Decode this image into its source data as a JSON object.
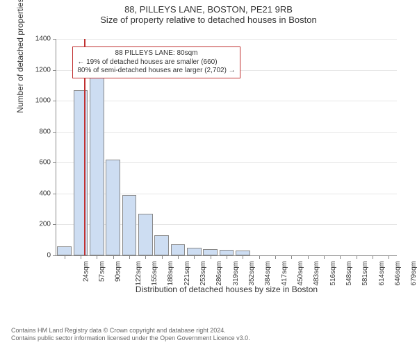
{
  "title_main": "88, PILLEYS LANE, BOSTON, PE21 9RB",
  "title_sub": "Size of property relative to detached houses in Boston",
  "chart": {
    "type": "histogram",
    "y_axis_label": "Number of detached properties",
    "x_axis_label": "Distribution of detached houses by size in Boston",
    "ylim": [
      0,
      1400
    ],
    "y_ticks": [
      0,
      200,
      400,
      600,
      800,
      1000,
      1200,
      1400
    ],
    "x_labels": [
      "24sqm",
      "57sqm",
      "90sqm",
      "122sqm",
      "155sqm",
      "188sqm",
      "221sqm",
      "253sqm",
      "286sqm",
      "319sqm",
      "352sqm",
      "384sqm",
      "417sqm",
      "450sqm",
      "483sqm",
      "516sqm",
      "548sqm",
      "581sqm",
      "614sqm",
      "646sqm",
      "679sqm"
    ],
    "bars": [
      60,
      1070,
      1160,
      620,
      390,
      270,
      130,
      70,
      50,
      40,
      35,
      30,
      0,
      0,
      0,
      0,
      0,
      0,
      0,
      0,
      0
    ],
    "bar_fill": "#cdddf2",
    "bar_border": "#888888",
    "grid_color": "#e6e6e6",
    "background_color": "#ffffff",
    "bar_width_ratio": 0.88,
    "ref_line": {
      "position_bin": 1.72,
      "color": "#c03030"
    },
    "info_box": {
      "line1": "88 PILLEYS LANE: 80sqm",
      "line2": "← 19% of detached houses are smaller (660)",
      "line3": "80% of semi-detached houses are larger (2,702) →",
      "border_color": "#c03030",
      "left_bin": 1.0,
      "top_value": 1350
    }
  },
  "footer": {
    "line1": "Contains HM Land Registry data © Crown copyright and database right 2024.",
    "line2": "Contains public sector information licensed under the Open Government Licence v3.0."
  }
}
